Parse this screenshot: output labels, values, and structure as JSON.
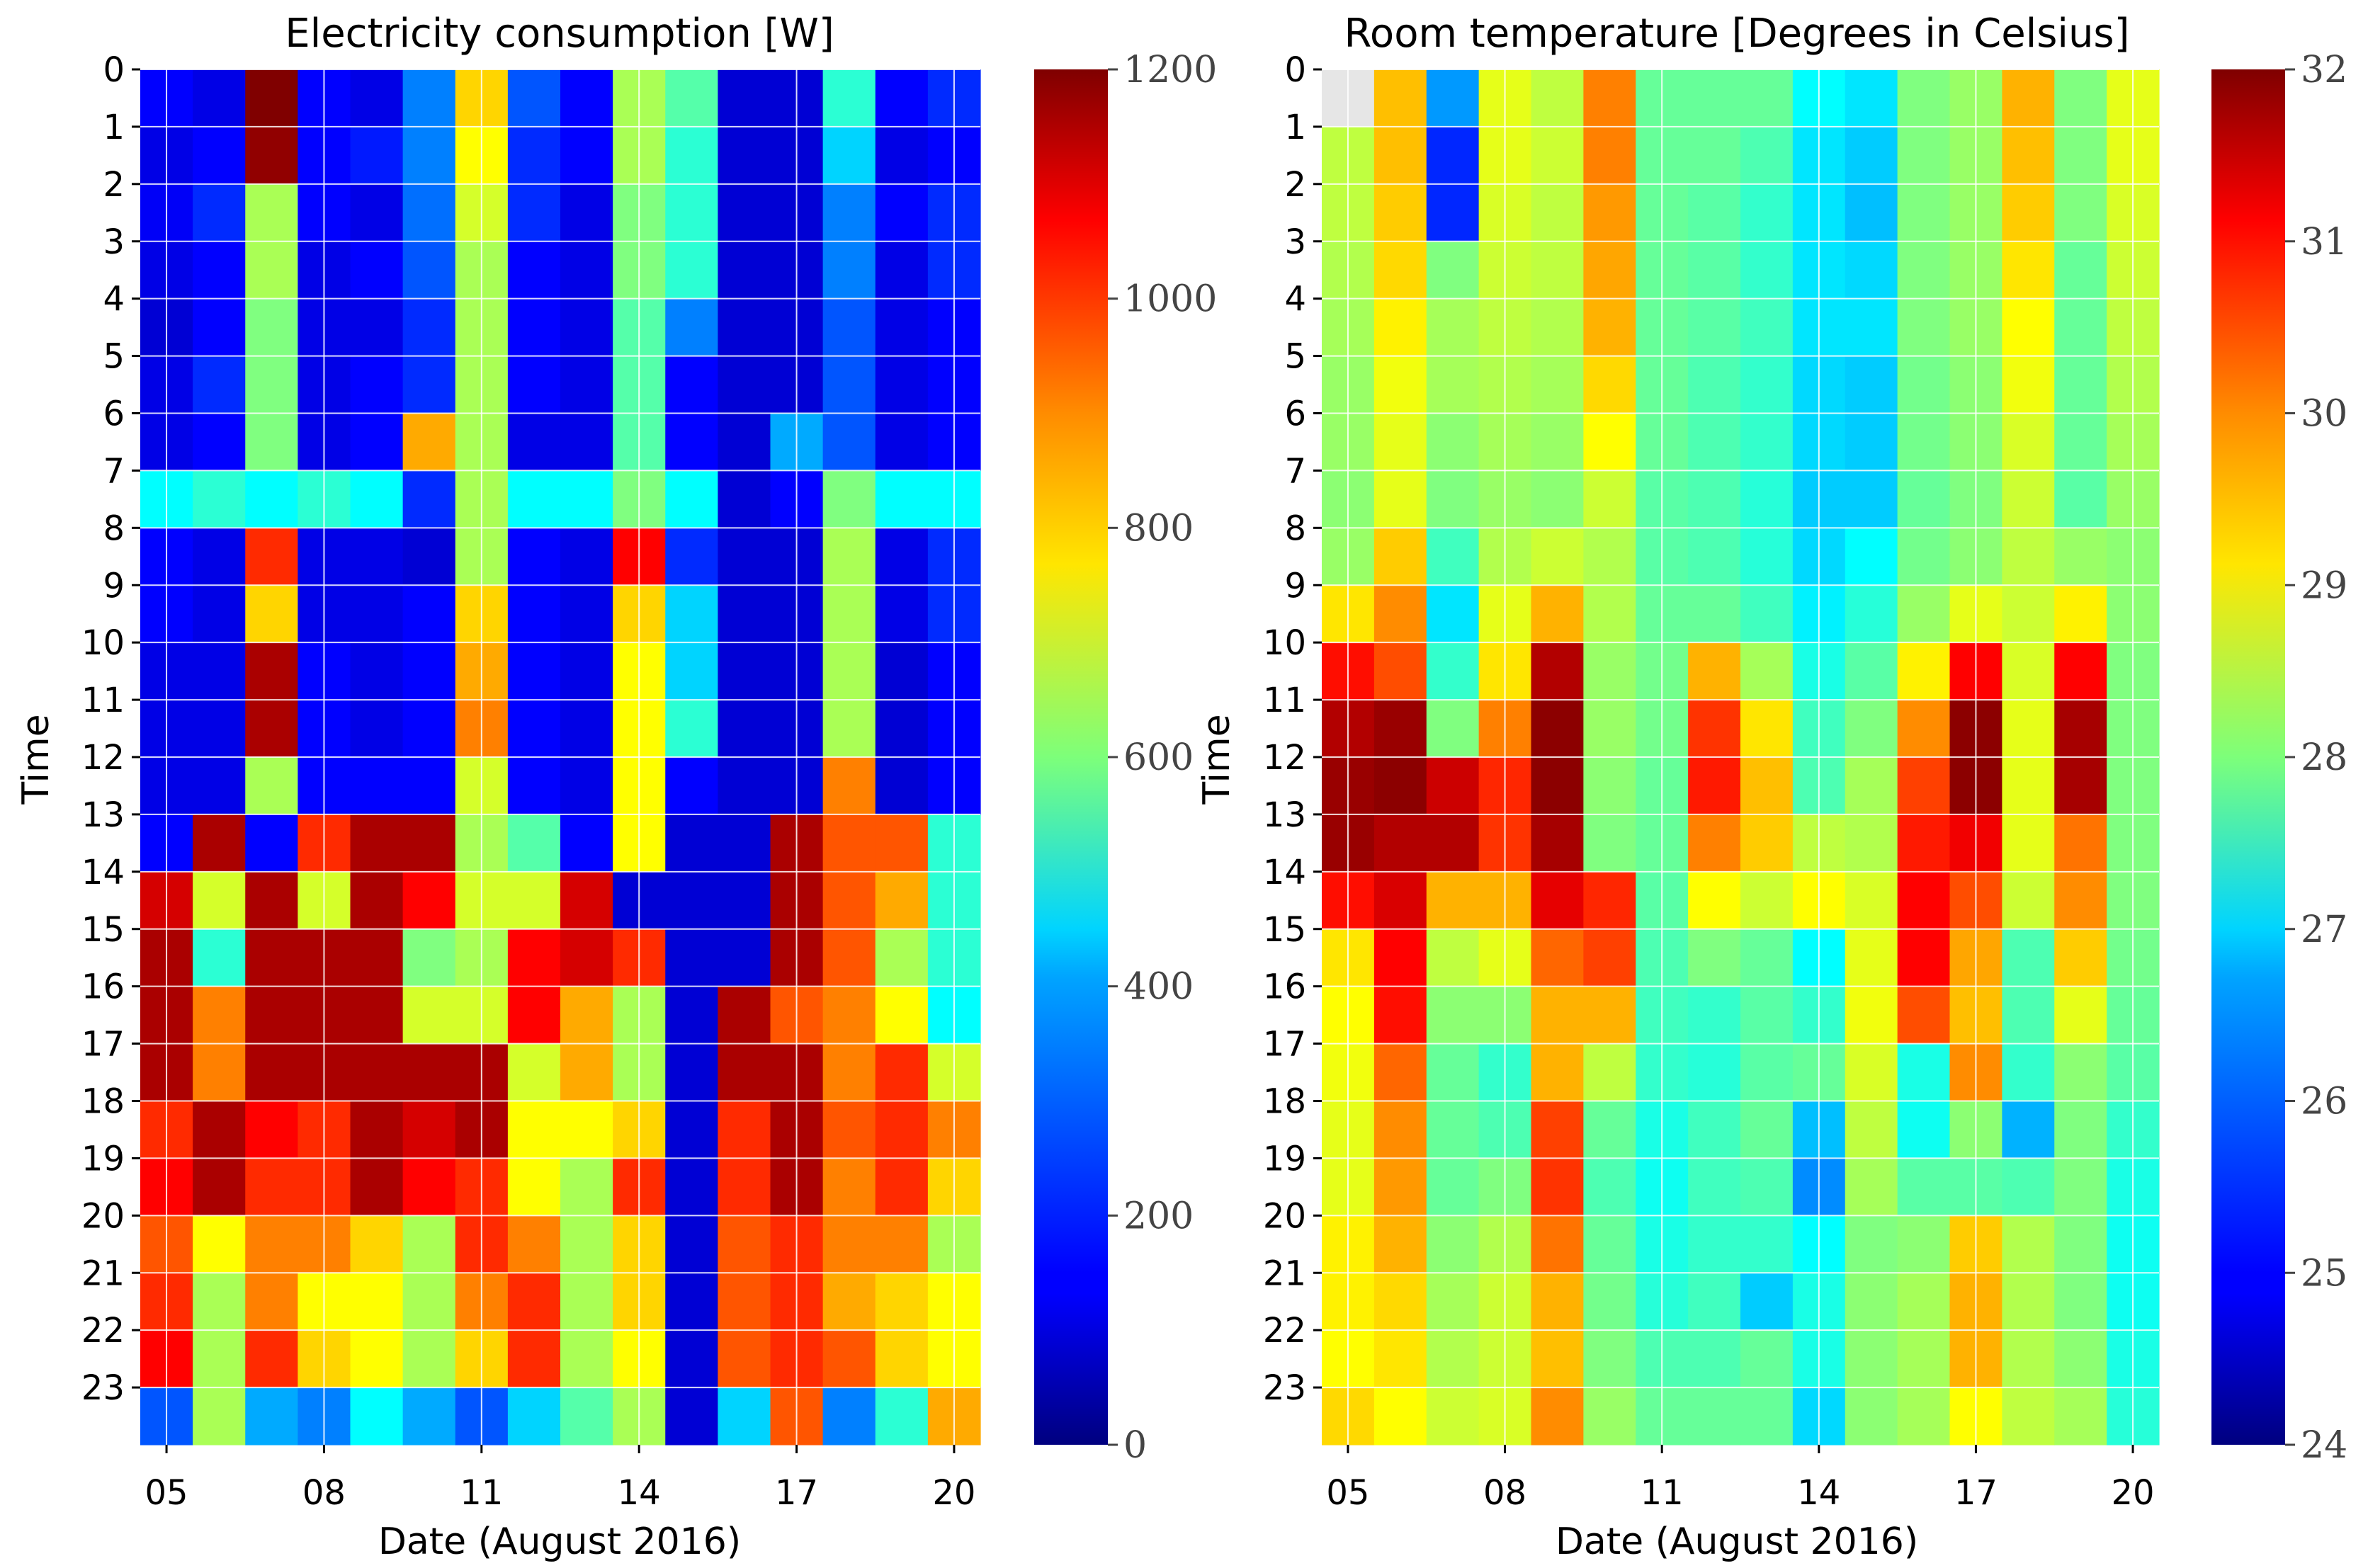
{
  "chart_data": [
    {
      "type": "heatmap",
      "title": "Electricity consumption [W]",
      "xlabel": "Date (August 2016)",
      "ylabel": "Time",
      "x_ticks": [
        "05",
        "08",
        "11",
        "14",
        "17",
        "20"
      ],
      "y_ticks": [
        "0",
        "1",
        "2",
        "3",
        "4",
        "5",
        "6",
        "7",
        "8",
        "9",
        "10",
        "11",
        "12",
        "13",
        "14",
        "15",
        "16",
        "17",
        "18",
        "19",
        "20",
        "21",
        "22",
        "23"
      ],
      "days": [
        "05",
        "06",
        "07",
        "08",
        "09",
        "10",
        "11",
        "12",
        "13",
        "14",
        "15",
        "16",
        "17",
        "18",
        "19",
        "20"
      ],
      "hours": [
        0,
        1,
        2,
        3,
        4,
        5,
        6,
        7,
        8,
        9,
        10,
        11,
        12,
        13,
        14,
        15,
        16,
        17,
        18,
        19,
        20,
        21,
        22,
        23
      ],
      "colorbar": {
        "min": 0,
        "max": 1200,
        "ticks": [
          "0",
          "200",
          "400",
          "600",
          "800",
          "1000",
          "1200"
        ],
        "colormap": "jet"
      },
      "values": [
        [
          150,
          120,
          1200,
          150,
          120,
          300,
          800,
          250,
          150,
          650,
          550,
          100,
          100,
          500,
          150,
          200
        ],
        [
          120,
          150,
          1180,
          150,
          180,
          300,
          750,
          200,
          150,
          650,
          500,
          100,
          100,
          400,
          120,
          150
        ],
        [
          140,
          200,
          650,
          150,
          120,
          280,
          700,
          200,
          120,
          600,
          500,
          100,
          100,
          300,
          150,
          200
        ],
        [
          120,
          150,
          650,
          120,
          150,
          250,
          650,
          150,
          120,
          600,
          500,
          100,
          100,
          300,
          120,
          200
        ],
        [
          100,
          150,
          600,
          120,
          120,
          200,
          650,
          150,
          120,
          550,
          300,
          100,
          100,
          250,
          120,
          150
        ],
        [
          120,
          200,
          600,
          120,
          150,
          200,
          650,
          150,
          120,
          550,
          150,
          100,
          100,
          250,
          120,
          150
        ],
        [
          120,
          150,
          600,
          120,
          150,
          850,
          650,
          120,
          120,
          550,
          150,
          100,
          350,
          250,
          120,
          150
        ],
        [
          450,
          500,
          450,
          500,
          450,
          200,
          650,
          450,
          450,
          600,
          450,
          100,
          150,
          600,
          450,
          450
        ],
        [
          150,
          120,
          1000,
          120,
          120,
          100,
          650,
          150,
          120,
          1050,
          200,
          100,
          100,
          650,
          120,
          200
        ],
        [
          150,
          120,
          800,
          120,
          120,
          150,
          800,
          150,
          120,
          800,
          400,
          100,
          100,
          650,
          120,
          200
        ],
        [
          120,
          120,
          1150,
          150,
          120,
          150,
          850,
          150,
          120,
          750,
          400,
          100,
          100,
          650,
          100,
          150
        ],
        [
          120,
          120,
          1150,
          150,
          120,
          150,
          900,
          150,
          120,
          750,
          500,
          100,
          100,
          650,
          100,
          150
        ],
        [
          120,
          120,
          650,
          150,
          150,
          150,
          700,
          150,
          120,
          750,
          150,
          100,
          100,
          900,
          100,
          150
        ],
        [
          150,
          1150,
          150,
          1000,
          1150,
          1150,
          650,
          550,
          150,
          750,
          100,
          100,
          1150,
          950,
          950,
          500
        ],
        [
          1100,
          700,
          1150,
          700,
          1150,
          1050,
          700,
          700,
          1100,
          100,
          100,
          100,
          1150,
          950,
          850,
          500
        ],
        [
          1150,
          500,
          1150,
          1150,
          1150,
          600,
          650,
          1050,
          1100,
          1000,
          100,
          100,
          1150,
          950,
          650,
          500
        ],
        [
          1150,
          900,
          1150,
          1150,
          1150,
          700,
          700,
          1050,
          850,
          650,
          100,
          1150,
          950,
          900,
          750,
          450
        ],
        [
          1150,
          900,
          1150,
          1150,
          1150,
          1150,
          1150,
          700,
          850,
          650,
          100,
          1150,
          1150,
          900,
          1000,
          700
        ],
        [
          1000,
          1150,
          1050,
          1000,
          1150,
          1100,
          1150,
          750,
          750,
          800,
          100,
          1000,
          1150,
          950,
          1000,
          900
        ],
        [
          1050,
          1150,
          1000,
          1000,
          1150,
          1050,
          1000,
          750,
          650,
          1000,
          100,
          1000,
          1150,
          900,
          1000,
          800
        ],
        [
          950,
          750,
          900,
          900,
          800,
          650,
          1000,
          900,
          650,
          800,
          100,
          950,
          1000,
          900,
          900,
          650
        ],
        [
          1000,
          650,
          900,
          750,
          750,
          650,
          900,
          1000,
          650,
          800,
          100,
          950,
          1000,
          850,
          800,
          750
        ],
        [
          1050,
          650,
          1000,
          800,
          750,
          650,
          800,
          1000,
          650,
          750,
          100,
          950,
          1000,
          950,
          800,
          750
        ],
        [
          250,
          650,
          350,
          300,
          450,
          350,
          250,
          400,
          550,
          650,
          100,
          400,
          950,
          300,
          500,
          850
        ]
      ]
    },
    {
      "type": "heatmap",
      "title": "Room temperature [Degrees in Celsius]",
      "xlabel": "Date (August 2016)",
      "ylabel": "Time",
      "x_ticks": [
        "05",
        "08",
        "11",
        "14",
        "17",
        "20"
      ],
      "y_ticks": [
        "0",
        "1",
        "2",
        "3",
        "4",
        "5",
        "6",
        "7",
        "8",
        "9",
        "10",
        "11",
        "12",
        "13",
        "14",
        "15",
        "16",
        "17",
        "18",
        "19",
        "20",
        "21",
        "22",
        "23"
      ],
      "days": [
        "05",
        "06",
        "07",
        "08",
        "09",
        "10",
        "11",
        "12",
        "13",
        "14",
        "15",
        "16",
        "17",
        "18",
        "19",
        "20"
      ],
      "hours": [
        0,
        1,
        2,
        3,
        4,
        5,
        6,
        7,
        8,
        9,
        10,
        11,
        12,
        13,
        14,
        15,
        16,
        17,
        18,
        19,
        20,
        21,
        22,
        23
      ],
      "colorbar": {
        "min": 24,
        "max": 32,
        "ticks": [
          "24",
          "25",
          "26",
          "27",
          "28",
          "29",
          "30",
          "31",
          "32"
        ],
        "colormap": "jet"
      },
      "values": [
        [
          null,
          29.5,
          26.2,
          28.8,
          28.5,
          30.0,
          27.8,
          27.8,
          27.8,
          27.0,
          26.8,
          28.0,
          28.2,
          29.6,
          28.0,
          28.8
        ],
        [
          28.5,
          29.5,
          25.3,
          28.8,
          28.6,
          30.0,
          27.8,
          27.8,
          27.6,
          26.8,
          26.6,
          28.0,
          28.2,
          29.5,
          28.0,
          28.8
        ],
        [
          28.5,
          29.4,
          25.3,
          28.7,
          28.5,
          29.8,
          27.8,
          27.7,
          27.4,
          26.8,
          26.5,
          28.0,
          28.2,
          29.4,
          28.0,
          28.7
        ],
        [
          28.4,
          29.3,
          28.0,
          28.6,
          28.5,
          29.7,
          27.8,
          27.7,
          27.4,
          26.8,
          26.7,
          28.0,
          28.2,
          29.2,
          27.8,
          28.6
        ],
        [
          28.3,
          29.1,
          28.3,
          28.5,
          28.4,
          29.6,
          27.8,
          27.7,
          27.5,
          26.8,
          26.8,
          28.0,
          28.2,
          29.0,
          27.8,
          28.5
        ],
        [
          28.2,
          28.9,
          28.3,
          28.4,
          28.3,
          29.3,
          27.8,
          27.6,
          27.4,
          26.7,
          26.6,
          27.9,
          28.1,
          28.9,
          27.8,
          28.4
        ],
        [
          28.2,
          28.8,
          28.1,
          28.3,
          28.2,
          29.0,
          27.8,
          27.6,
          27.4,
          26.7,
          26.6,
          27.9,
          28.1,
          28.7,
          27.8,
          28.3
        ],
        [
          28.1,
          28.8,
          28.0,
          28.2,
          28.1,
          28.6,
          27.7,
          27.6,
          27.3,
          26.6,
          26.6,
          27.8,
          28.0,
          28.6,
          27.7,
          28.2
        ],
        [
          28.2,
          29.4,
          27.5,
          28.4,
          28.6,
          28.4,
          27.7,
          27.6,
          27.3,
          26.7,
          27.0,
          27.9,
          28.1,
          28.5,
          28.2,
          28.1
        ],
        [
          29.2,
          29.9,
          26.8,
          28.8,
          29.6,
          28.4,
          27.8,
          27.8,
          27.5,
          26.9,
          27.3,
          28.2,
          28.8,
          28.6,
          29.1,
          28.1
        ],
        [
          30.9,
          30.4,
          27.4,
          29.2,
          31.6,
          28.2,
          27.9,
          29.6,
          28.3,
          27.2,
          27.7,
          29.1,
          31.0,
          28.7,
          31.0,
          28.0
        ],
        [
          31.6,
          31.8,
          28.0,
          30.0,
          31.9,
          28.2,
          27.9,
          30.6,
          29.2,
          27.5,
          28.0,
          29.9,
          31.9,
          28.8,
          31.7,
          28.0
        ],
        [
          31.8,
          31.9,
          31.4,
          30.7,
          31.9,
          28.1,
          27.8,
          30.8,
          29.5,
          27.6,
          28.3,
          30.5,
          31.9,
          28.8,
          31.7,
          28.0
        ],
        [
          31.8,
          31.6,
          31.6,
          30.6,
          31.7,
          28.0,
          27.8,
          30.0,
          29.4,
          28.5,
          28.4,
          30.8,
          31.1,
          28.8,
          30.1,
          28.0
        ],
        [
          30.9,
          31.3,
          29.6,
          29.6,
          31.2,
          30.7,
          27.7,
          29.0,
          28.6,
          29.0,
          28.7,
          31.0,
          30.4,
          28.6,
          29.9,
          28.0
        ],
        [
          29.2,
          31.0,
          28.5,
          28.8,
          30.2,
          30.5,
          27.6,
          28.0,
          27.8,
          27.0,
          28.8,
          31.0,
          29.7,
          27.6,
          29.4,
          27.9
        ],
        [
          29.0,
          30.9,
          28.1,
          28.1,
          29.6,
          29.6,
          27.5,
          27.4,
          27.7,
          27.4,
          28.9,
          30.4,
          29.5,
          27.6,
          28.8,
          27.8
        ],
        [
          28.9,
          30.2,
          27.8,
          27.4,
          29.6,
          28.5,
          27.4,
          27.3,
          27.7,
          27.8,
          28.7,
          27.2,
          29.9,
          27.4,
          28.1,
          27.7
        ],
        [
          28.8,
          29.9,
          27.8,
          27.6,
          30.5,
          27.8,
          27.2,
          27.5,
          27.8,
          26.5,
          28.5,
          27.1,
          28.1,
          26.4,
          28.0,
          27.4
        ],
        [
          28.8,
          29.8,
          27.8,
          28.0,
          30.6,
          27.6,
          27.1,
          27.5,
          27.6,
          26.1,
          28.3,
          27.7,
          27.7,
          27.6,
          28.0,
          27.2
        ],
        [
          29.1,
          29.6,
          28.1,
          28.4,
          30.1,
          27.8,
          27.2,
          27.4,
          27.4,
          27.0,
          28.0,
          28.1,
          29.4,
          28.4,
          28.0,
          27.1
        ],
        [
          29.1,
          29.3,
          28.3,
          28.6,
          29.6,
          27.9,
          27.3,
          27.5,
          26.6,
          27.2,
          28.1,
          28.3,
          29.6,
          28.4,
          28.0,
          27.1
        ],
        [
          29.0,
          29.2,
          28.4,
          28.6,
          29.5,
          28.0,
          27.6,
          27.6,
          27.8,
          27.2,
          28.1,
          28.3,
          29.6,
          28.4,
          28.1,
          27.2
        ],
        [
          29.3,
          29.0,
          28.6,
          28.7,
          29.9,
          28.2,
          27.8,
          27.8,
          27.8,
          26.7,
          28.1,
          28.3,
          29.0,
          28.5,
          28.3,
          27.3
        ]
      ]
    }
  ]
}
